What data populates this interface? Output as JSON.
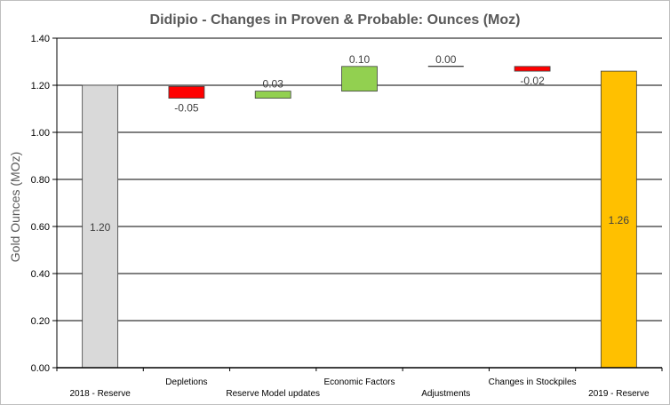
{
  "chart_data": {
    "type": "bar",
    "subtype": "waterfall",
    "title": "Didipio - Changes in Proven & Probable: Ounces (Moz)",
    "ylabel": "Gold Ounces (MOz)",
    "xlabel": "",
    "ylim": [
      0,
      1.4
    ],
    "yticks": [
      "0.00",
      "0.20",
      "0.40",
      "0.60",
      "0.80",
      "1.00",
      "1.20",
      "1.40"
    ],
    "grid": true,
    "legend": "none",
    "categories": [
      "2018 - Reserve",
      "Depletions",
      "Reserve Model updates",
      "Economic Factors",
      "Adjustments",
      "Changes in Stockpiles",
      "2019 - Reserve"
    ],
    "values": [
      1.2,
      -0.05,
      0.03,
      0.1,
      0.0,
      -0.02,
      1.26
    ],
    "labels": [
      "1.20",
      "-0.05",
      "0.03",
      "0.10",
      "0.00",
      "-0.02",
      "1.26"
    ],
    "kinds": [
      "total",
      "delta",
      "delta",
      "delta",
      "delta",
      "delta",
      "total"
    ],
    "bars": [
      {
        "base": 0,
        "top": 1.2,
        "color": "#d9d9d9"
      },
      {
        "base": 1.145,
        "top": 1.195,
        "color": "#ff0000"
      },
      {
        "base": 1.145,
        "top": 1.175,
        "color": "#92d050"
      },
      {
        "base": 1.175,
        "top": 1.28,
        "color": "#92d050"
      },
      {
        "base": 1.28,
        "top": 1.28,
        "color": "#ffffff"
      },
      {
        "base": 1.26,
        "top": 1.28,
        "color": "#ff0000"
      },
      {
        "base": 0,
        "top": 1.26,
        "color": "#ffc000"
      }
    ]
  }
}
